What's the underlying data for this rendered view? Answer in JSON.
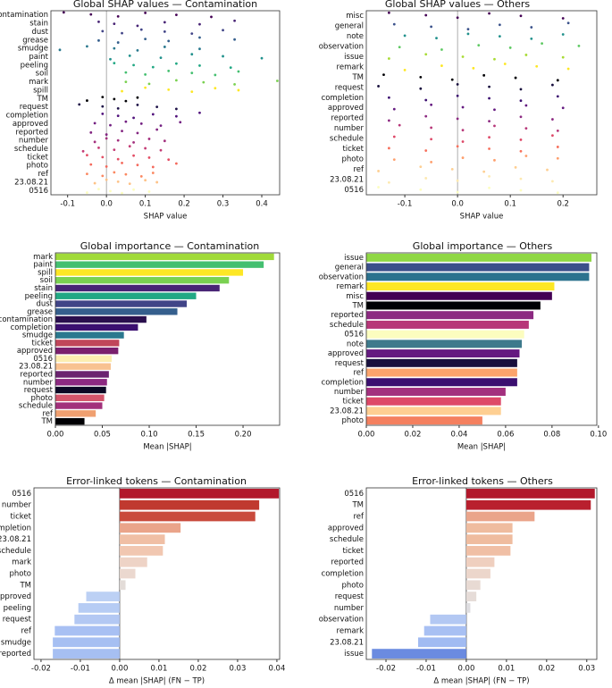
{
  "chart_data": [
    {
      "type": "strip",
      "title": "Global SHAP values — Contamination",
      "xlabel": "SHAP value",
      "categories": [
        "contamination",
        "stain",
        "dust",
        "grease",
        "smudge",
        "paint",
        "peeling",
        "soil",
        "mark",
        "spill",
        "TM",
        "request",
        "completion",
        "approved",
        "reported",
        "number",
        "schedule",
        "ticket",
        "photo",
        "ref",
        "23.08.21",
        "0516"
      ],
      "values": [
        [
          -0.11,
          -0.04,
          0.03,
          0.1,
          0.18,
          0.27
        ],
        [
          -0.02,
          0.02,
          0.08,
          0.15,
          0.24,
          0.33
        ],
        [
          -0.01,
          0.04,
          0.09,
          0.15,
          0.22,
          0.3
        ],
        [
          -0.02,
          0.03,
          0.1,
          0.16,
          0.24,
          0.33
        ],
        [
          -0.12,
          -0.05,
          0.02,
          0.08,
          0.15,
          0.24
        ],
        [
          0.01,
          0.06,
          0.14,
          0.22,
          0.3,
          0.4
        ],
        [
          0.02,
          0.07,
          0.12,
          0.18,
          0.24,
          0.32
        ],
        [
          0.05,
          0.1,
          0.16,
          0.22,
          0.28,
          0.34
        ],
        [
          0.05,
          0.11,
          0.18,
          0.25,
          0.33,
          0.44
        ],
        [
          0.04,
          0.1,
          0.16,
          0.22,
          0.28,
          0.34
        ],
        [
          -0.05,
          -0.01,
          0.02,
          0.05,
          0.08
        ],
        [
          -0.07,
          -0.01,
          0.03,
          0.08,
          0.13,
          0.18
        ],
        [
          -0.01,
          0.03,
          0.07,
          0.12,
          0.18,
          0.24
        ],
        [
          -0.03,
          0.01,
          0.05,
          0.09,
          0.14,
          0.19
        ],
        [
          -0.04,
          0,
          0.04,
          0.08,
          0.13
        ],
        [
          -0.03,
          0,
          0.03,
          0.07,
          0.11,
          0.15
        ],
        [
          -0.06,
          -0.02,
          0.02,
          0.06,
          0.1,
          0.14
        ],
        [
          -0.05,
          -0.01,
          0.03,
          0.07,
          0.11,
          0.16
        ],
        [
          -0.04,
          0,
          0.04,
          0.08,
          0.12,
          0.18
        ],
        [
          -0.05,
          -0.01,
          0.02,
          0.05,
          0.09,
          0.12
        ],
        [
          -0.03,
          0,
          0.03,
          0.06,
          0.1,
          0.13
        ],
        [
          -0.05,
          -0.02,
          0.01,
          0.04,
          0.07,
          0.11
        ]
      ],
      "colors": [
        "#440154",
        "#482475",
        "#414487",
        "#355f8d",
        "#2a788e",
        "#21918c",
        "#22a884",
        "#44bf70",
        "#7ad151",
        "#fde725",
        "#000004",
        "#1d1147",
        "#51127c",
        "#721f81",
        "#832681",
        "#a3307e",
        "#c43c75",
        "#e34e65",
        "#f4695c",
        "#fb8861",
        "#fec287",
        "#fcfdbf"
      ],
      "xlim": [
        -0.143,
        0.446
      ],
      "xticks": [
        -0.1,
        {
          "value": 0,
          "label": "0.0"
        },
        0.1,
        0.2,
        0.3,
        0.4
      ],
      "zero_line": true
    },
    {
      "type": "strip",
      "title": "Global SHAP values — Others",
      "xlabel": "SHAP value",
      "categories": [
        "misc",
        "general",
        "note",
        "observation",
        "issue",
        "remark",
        "TM",
        "request",
        "completion",
        "approved",
        "reported",
        "number",
        "schedule",
        "ticket",
        "photo",
        "ref",
        "23.08.21",
        "0516"
      ],
      "values": [
        [
          -0.13,
          -0.06,
          0,
          0.06,
          0.12,
          0.2
        ],
        [
          -0.12,
          -0.05,
          0.02,
          0.08,
          0.14,
          0.21
        ],
        [
          -0.1,
          -0.04,
          0.02,
          0.08,
          0.14,
          0.2
        ],
        [
          -0.11,
          -0.03,
          0.04,
          0.1,
          0.16,
          0.23
        ],
        [
          -0.13,
          -0.06,
          0.01,
          0.07,
          0.13,
          0.2
        ],
        [
          -0.1,
          -0.03,
          0.03,
          0.09,
          0.15,
          0.21
        ],
        [
          -0.14,
          -0.07,
          -0.01,
          0.05,
          0.11,
          0.19
        ],
        [
          -0.15,
          -0.07,
          0,
          0.06,
          0.12,
          0.18
        ],
        [
          -0.13,
          -0.06,
          0,
          0.06,
          0.12,
          0.19
        ],
        [
          -0.12,
          -0.05,
          0.01,
          0.07,
          0.13,
          0.2
        ],
        [
          -0.13,
          -0.06,
          0,
          0.06,
          0.12,
          0.18
        ],
        [
          -0.11,
          -0.05,
          0.01,
          0.07,
          0.13,
          0.19
        ],
        [
          -0.12,
          -0.05,
          0.01,
          0.06,
          0.12,
          0.18
        ],
        [
          -0.13,
          -0.06,
          0,
          0.06,
          0.12,
          0.19
        ],
        [
          -0.12,
          -0.05,
          0.01,
          0.07,
          0.13,
          0.19
        ],
        [
          -0.15,
          -0.07,
          -0.01,
          0.05,
          0.11,
          0.17
        ],
        [
          -0.13,
          -0.06,
          0,
          0.06,
          0.12,
          0.18
        ],
        [
          -0.15,
          -0.07,
          0,
          0.06,
          0.12,
          0.19
        ]
      ],
      "colors": [
        "#440154",
        "#3b528b",
        "#21918c",
        "#5ec962",
        "#a8db34",
        "#fde725",
        "#000004",
        "#180f3d",
        "#3b0f70",
        "#641a80",
        "#8c2981",
        "#b73779",
        "#de4968",
        "#f7705c",
        "#fe9f6d",
        "#fecf92",
        "#fde9b0",
        "#fcfdbf"
      ],
      "xlim": [
        -0.173,
        0.264
      ],
      "xticks": [
        -0.1,
        {
          "value": 0,
          "label": "0.0"
        },
        0.1,
        0.2
      ],
      "zero_line": true
    },
    {
      "type": "barh",
      "title": "Global importance — Contamination",
      "xlabel": "Mean |SHAP|",
      "categories": [
        "mark",
        "paint",
        "spill",
        "soil",
        "stain",
        "peeling",
        "dust",
        "grease",
        "contamination",
        "completion",
        "smudge",
        "ticket",
        "approved",
        "0516",
        "23.08.21",
        "reported",
        "number",
        "request",
        "photo",
        "schedule",
        "ref",
        "TM"
      ],
      "values": [
        0.233,
        0.222,
        0.2,
        0.185,
        0.175,
        0.15,
        0.14,
        0.13,
        0.097,
        0.088,
        0.073,
        0.068,
        0.067,
        0.06,
        0.059,
        0.057,
        0.055,
        0.054,
        0.052,
        0.05,
        0.043,
        0.031
      ],
      "colors": [
        "#a0da39",
        "#44bf70",
        "#fde725",
        "#7ad151",
        "#482475",
        "#22a884",
        "#414487",
        "#355f8d",
        "#2a0f4d",
        "#3b0f70",
        "#2a788e",
        "#c0465a",
        "#7a1f6d",
        "#fcedb0",
        "#f8c291",
        "#6b2370",
        "#8c2981",
        "#0b0924",
        "#d4556b",
        "#a2307b",
        "#f0a070",
        "#000004"
      ],
      "xlim": [
        0,
        0.239
      ],
      "xticks": [
        {
          "value": 0,
          "label": "0.00"
        },
        0.05,
        {
          "value": 0.1,
          "label": "0.10"
        },
        0.15,
        {
          "value": 0.2,
          "label": "0.20"
        }
      ],
      "zero_line": false
    },
    {
      "type": "barh",
      "title": "Global importance — Others",
      "xlabel": "Mean |SHAP|",
      "categories": [
        "issue",
        "general",
        "observation",
        "remark",
        "misc",
        "TM",
        "reported",
        "schedule",
        "0516",
        "note",
        "approved",
        "request",
        "ref",
        "completion",
        "number",
        "ticket",
        "23.08.21",
        "photo"
      ],
      "values": [
        0.097,
        0.096,
        0.096,
        0.081,
        0.08,
        0.075,
        0.072,
        0.07,
        0.068,
        0.067,
        0.066,
        0.065,
        0.065,
        0.065,
        0.06,
        0.058,
        0.058,
        0.05
      ],
      "colors": [
        "#8fd744",
        "#3b4f8a",
        "#2c728e",
        "#fde725",
        "#440154",
        "#000004",
        "#8c2981",
        "#b73779",
        "#fcfdbf",
        "#3e7a8c",
        "#641a80",
        "#180f3d",
        "#fca46c",
        "#3b0f70",
        "#a3307e",
        "#de4968",
        "#fecf92",
        "#f4805f"
      ],
      "xlim": [
        0,
        0.0993
      ],
      "xticks": [
        {
          "value": 0,
          "label": "0.00"
        },
        0.02,
        0.04,
        0.06,
        0.08,
        {
          "value": 0.1,
          "label": "0.10"
        }
      ],
      "zero_line": false
    },
    {
      "type": "barh",
      "title": "Error-linked tokens — Contamination",
      "xlabel": "Δ mean |SHAP| (FN − TP)",
      "categories": [
        "0516",
        "number",
        "ticket",
        "completion",
        "23.08.21",
        "schedule",
        "mark",
        "photo",
        "TM",
        "approved",
        "peeling",
        "request",
        "ref",
        "smudge",
        "reported"
      ],
      "values": [
        0.0405,
        0.0355,
        0.0345,
        0.0155,
        0.0115,
        0.011,
        0.007,
        0.004,
        0.0015,
        -0.0085,
        -0.0105,
        -0.0115,
        -0.0165,
        -0.017,
        -0.017
      ],
      "colors": [
        "#b2182b",
        "#c0392f",
        "#c94a3c",
        "#eaa48a",
        "#f0bfa5",
        "#f1c7b1",
        "#eed3c6",
        "#ebd8cf",
        "#e3dcd8",
        "#bcd0f4",
        "#b6ccf4",
        "#b3c8f3",
        "#a8c0f3",
        "#a6bff2",
        "#a6bff2"
      ],
      "xlim": [
        -0.0218,
        0.0407
      ],
      "xticks": [
        -0.02,
        -0.01,
        {
          "value": 0,
          "label": "0.00"
        },
        0.01,
        0.02,
        0.03,
        0.04
      ],
      "zero_line": true
    },
    {
      "type": "barh",
      "title": "Error-linked tokens — Others",
      "xlabel": "Δ mean |SHAP| (FN − TP)",
      "categories": [
        "0516",
        "TM",
        "ref",
        "approved",
        "schedule",
        "ticket",
        "reported",
        "completion",
        "photo",
        "request",
        "number",
        "observation",
        "remark",
        "23.08.21",
        "issue"
      ],
      "values": [
        0.032,
        0.031,
        0.017,
        0.0115,
        0.0115,
        0.011,
        0.007,
        0.006,
        0.0035,
        0.0025,
        0.001,
        -0.009,
        -0.0105,
        -0.012,
        -0.0235
      ],
      "colors": [
        "#b2182b",
        "#b9202e",
        "#eaa48a",
        "#efbc9f",
        "#efbc9f",
        "#f0bfa5",
        "#efcfbf",
        "#ecd6cb",
        "#e8dad3",
        "#e6dcd8",
        "#dedde0",
        "#b3c8f3",
        "#a8c0f3",
        "#a1bbf2",
        "#6b8be0"
      ],
      "xlim": [
        -0.0249,
        0.0325
      ],
      "xticks": [
        -0.02,
        -0.01,
        {
          "value": 0,
          "label": "0.00"
        },
        0.01,
        0.02,
        0.03
      ],
      "zero_line": true
    }
  ]
}
